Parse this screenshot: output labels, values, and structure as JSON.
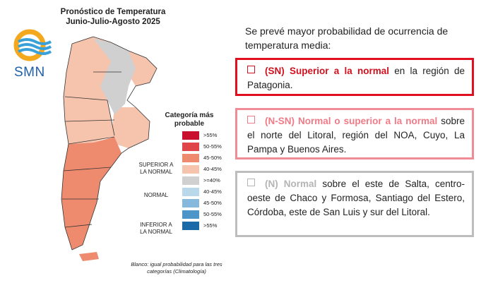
{
  "map": {
    "title_line1": "Pronóstico de Temperatura",
    "title_line2": "Junio-Julio-Agosto 2025",
    "logo_text": "SMN"
  },
  "legend": {
    "title_line1": "Categoría más",
    "title_line2": "probable",
    "items": [
      {
        "label": ">55%",
        "color": "#c8102e"
      },
      {
        "label": "50-55%",
        "color": "#e0454a"
      },
      {
        "label": "45-50%",
        "color": "#ee8a6e"
      },
      {
        "label": "40-45%",
        "color": "#f6c3ad"
      },
      {
        "label": ">=40%",
        "color": "#d0d0d0"
      },
      {
        "label": "40-45%",
        "color": "#b9d8ea"
      },
      {
        "label": "45-50%",
        "color": "#86b9dc"
      },
      {
        "label": "50-55%",
        "color": "#4c95c8"
      },
      {
        "label": ">55%",
        "color": "#1a6aa8"
      }
    ],
    "group_superior_1": "SUPERIOR A",
    "group_superior_2": "LA NORMAL",
    "group_normal": "NORMAL",
    "group_inferior_1": "INFERIOR A",
    "group_inferior_2": "LA NORMAL",
    "note_line1": "Blanco: igual probabilidad para las tres",
    "note_line2": "categorías (Climatología)"
  },
  "text": {
    "intro": "Se prevé mayor probabilidad de ocurrencia de temperatura media:",
    "sn_highlight": "(SN) Superior a la normal",
    "sn_rest": " en la región de Patagonia.",
    "nsn_highlight": "(N-SN) Normal o superior a la normal",
    "nsn_rest": " sobre el norte del Litoral, región del NOA, Cuyo, La Pampa y Buenos Aires.",
    "n_highlight": "(N) Normal",
    "n_rest": " sobre el este de Salta, centro-oeste de Chaco y Formosa, Santiago del Estero, Córdoba, este de San Luis y sur del Litoral."
  }
}
